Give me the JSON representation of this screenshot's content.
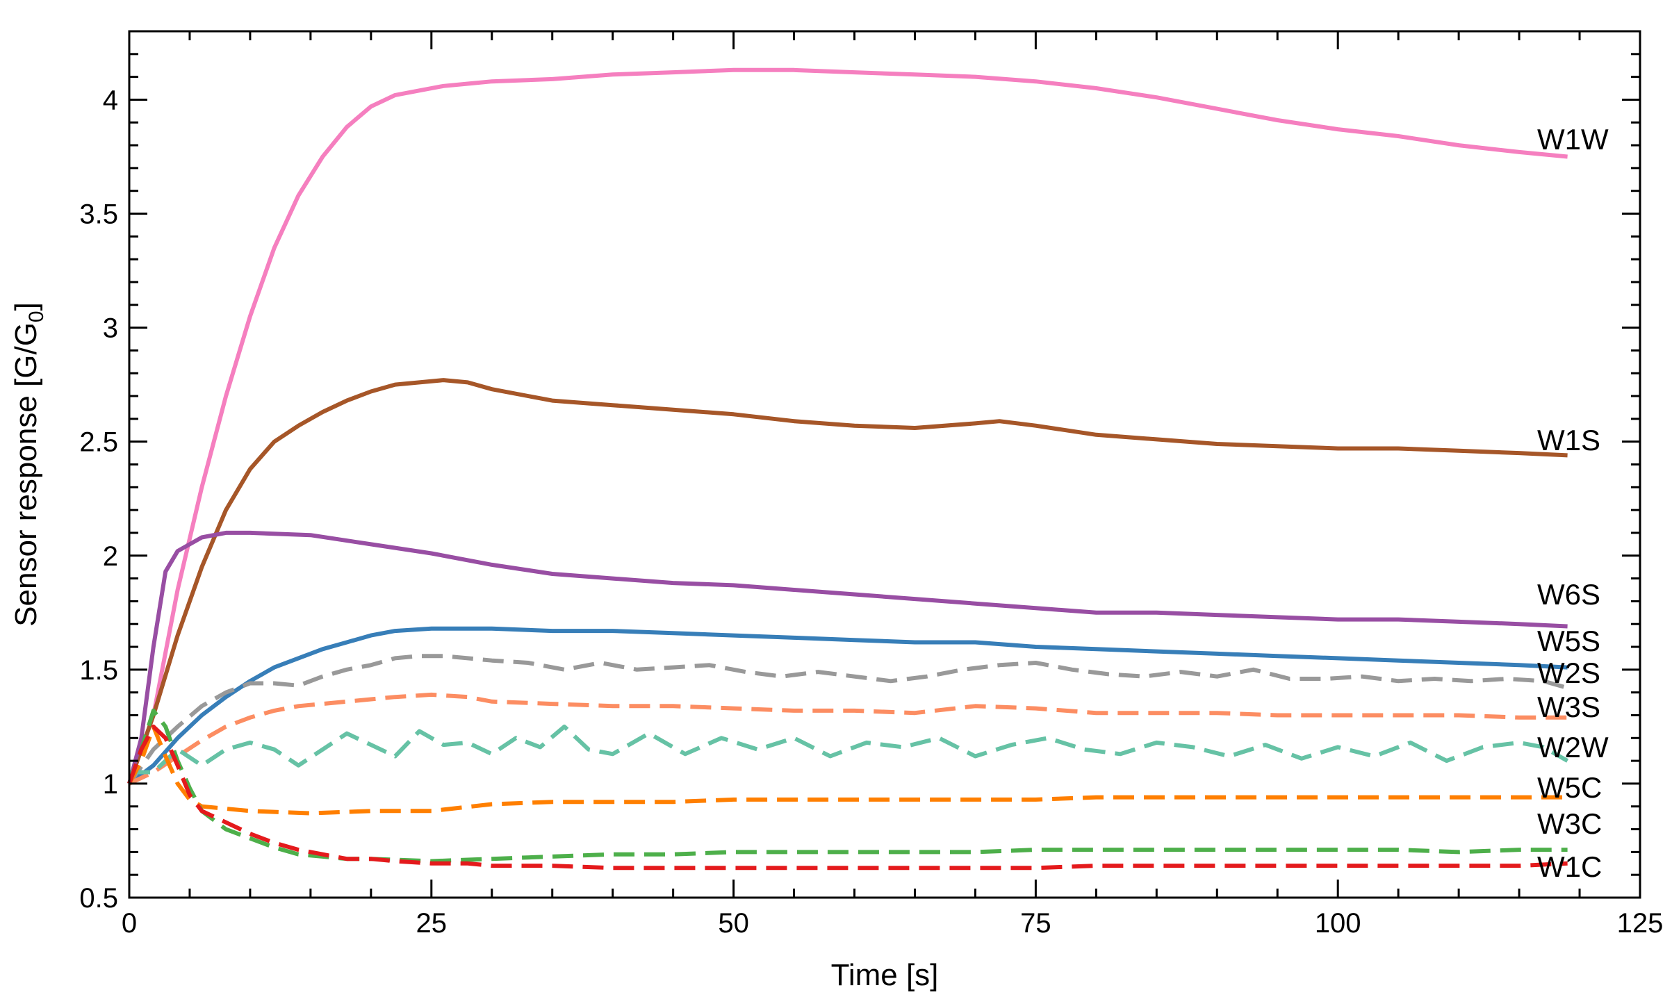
{
  "chart_data": {
    "type": "line",
    "xlabel": "Time [s]",
    "ylabel": "Sensor response [G/G",
    "ylabel_subscript": "0",
    "ylabel_suffix": "]",
    "xlim": [
      0,
      125
    ],
    "ylim": [
      0.5,
      4.3
    ],
    "x_ticks": [
      0,
      25,
      50,
      75,
      100,
      125
    ],
    "y_ticks": [
      0.5,
      1,
      1.5,
      2,
      2.5,
      3,
      3.5,
      4
    ],
    "x_tick_labels": [
      "0",
      "25",
      "50",
      "75",
      "100",
      "125"
    ],
    "y_tick_labels": [
      "0.5",
      "1",
      "1.5",
      "2",
      "2.5",
      "3",
      "3.5",
      "4"
    ],
    "grid": false,
    "legend": "inline labels at right end of each line",
    "series": [
      {
        "name": "W1W",
        "color": "#f57fbf",
        "dash": "solid",
        "x": [
          0,
          2,
          4,
          6,
          8,
          10,
          12,
          14,
          16,
          18,
          20,
          22,
          24,
          26,
          28,
          30,
          35,
          40,
          45,
          50,
          55,
          60,
          65,
          70,
          75,
          80,
          85,
          90,
          95,
          100,
          105,
          110,
          115,
          119
        ],
        "y": [
          1.0,
          1.3,
          1.85,
          2.3,
          2.7,
          3.05,
          3.35,
          3.58,
          3.75,
          3.88,
          3.97,
          4.02,
          4.04,
          4.06,
          4.07,
          4.08,
          4.09,
          4.11,
          4.12,
          4.13,
          4.13,
          4.12,
          4.11,
          4.1,
          4.08,
          4.05,
          4.01,
          3.96,
          3.91,
          3.87,
          3.84,
          3.8,
          3.77,
          3.75
        ]
      },
      {
        "name": "W1S",
        "color": "#a65628",
        "dash": "solid",
        "x": [
          0,
          2,
          4,
          6,
          8,
          10,
          12,
          14,
          16,
          18,
          20,
          22,
          24,
          26,
          28,
          30,
          35,
          40,
          45,
          50,
          55,
          60,
          65,
          70,
          72,
          75,
          80,
          85,
          90,
          95,
          100,
          105,
          110,
          115,
          119
        ],
        "y": [
          1.0,
          1.3,
          1.65,
          1.95,
          2.2,
          2.38,
          2.5,
          2.57,
          2.63,
          2.68,
          2.72,
          2.75,
          2.76,
          2.77,
          2.76,
          2.73,
          2.68,
          2.66,
          2.64,
          2.62,
          2.59,
          2.57,
          2.56,
          2.58,
          2.59,
          2.57,
          2.53,
          2.51,
          2.49,
          2.48,
          2.47,
          2.47,
          2.46,
          2.45,
          2.44
        ]
      },
      {
        "name": "W6S",
        "color": "#984ea3",
        "dash": "solid",
        "x": [
          0,
          1,
          2,
          3,
          4,
          6,
          8,
          10,
          15,
          20,
          25,
          30,
          35,
          40,
          45,
          50,
          55,
          60,
          65,
          70,
          75,
          80,
          85,
          90,
          95,
          100,
          105,
          110,
          115,
          119
        ],
        "y": [
          1.0,
          1.2,
          1.6,
          1.93,
          2.02,
          2.08,
          2.1,
          2.1,
          2.09,
          2.05,
          2.01,
          1.96,
          1.92,
          1.9,
          1.88,
          1.87,
          1.85,
          1.83,
          1.81,
          1.79,
          1.77,
          1.75,
          1.75,
          1.74,
          1.73,
          1.72,
          1.72,
          1.71,
          1.7,
          1.69
        ]
      },
      {
        "name": "W5S",
        "color": "#377eb8",
        "dash": "solid",
        "x": [
          0,
          2,
          4,
          6,
          8,
          10,
          12,
          14,
          16,
          18,
          20,
          22,
          25,
          28,
          30,
          35,
          40,
          45,
          50,
          55,
          60,
          65,
          70,
          75,
          80,
          85,
          90,
          95,
          100,
          105,
          110,
          115,
          119
        ],
        "y": [
          1.0,
          1.08,
          1.2,
          1.3,
          1.38,
          1.45,
          1.51,
          1.55,
          1.59,
          1.62,
          1.65,
          1.67,
          1.68,
          1.68,
          1.68,
          1.67,
          1.67,
          1.66,
          1.65,
          1.64,
          1.63,
          1.62,
          1.62,
          1.6,
          1.59,
          1.58,
          1.57,
          1.56,
          1.55,
          1.54,
          1.53,
          1.52,
          1.51
        ]
      },
      {
        "name": "W2S",
        "color": "#999999",
        "dash": "dashed",
        "x": [
          0,
          2,
          4,
          6,
          8,
          10,
          12,
          14,
          16,
          18,
          20,
          22,
          24,
          26,
          28,
          30,
          33,
          36,
          39,
          42,
          45,
          48,
          51,
          54,
          57,
          60,
          63,
          66,
          69,
          72,
          75,
          78,
          81,
          84,
          87,
          90,
          93,
          96,
          99,
          102,
          105,
          108,
          111,
          114,
          117,
          119
        ],
        "y": [
          1.0,
          1.15,
          1.25,
          1.34,
          1.4,
          1.44,
          1.44,
          1.43,
          1.47,
          1.5,
          1.52,
          1.55,
          1.56,
          1.56,
          1.55,
          1.54,
          1.53,
          1.5,
          1.53,
          1.5,
          1.51,
          1.52,
          1.49,
          1.47,
          1.49,
          1.47,
          1.45,
          1.47,
          1.5,
          1.52,
          1.53,
          1.5,
          1.48,
          1.47,
          1.49,
          1.47,
          1.5,
          1.46,
          1.46,
          1.47,
          1.45,
          1.46,
          1.45,
          1.46,
          1.45,
          1.42
        ]
      },
      {
        "name": "W3S",
        "color": "#fc8d62",
        "dash": "dashed",
        "x": [
          0,
          2,
          4,
          6,
          8,
          10,
          12,
          14,
          16,
          18,
          20,
          22,
          25,
          28,
          30,
          35,
          40,
          45,
          50,
          55,
          60,
          65,
          70,
          75,
          80,
          85,
          90,
          95,
          100,
          105,
          110,
          115,
          119
        ],
        "y": [
          1.0,
          1.05,
          1.12,
          1.19,
          1.25,
          1.29,
          1.32,
          1.34,
          1.35,
          1.36,
          1.37,
          1.38,
          1.39,
          1.38,
          1.36,
          1.35,
          1.34,
          1.34,
          1.33,
          1.32,
          1.32,
          1.31,
          1.34,
          1.33,
          1.31,
          1.31,
          1.31,
          1.3,
          1.3,
          1.3,
          1.3,
          1.29,
          1.29
        ]
      },
      {
        "name": "W2W",
        "color": "#66c2a5",
        "dash": "dashed",
        "x": [
          0,
          2,
          4,
          6,
          8,
          10,
          12,
          14,
          16,
          18,
          20,
          22,
          24,
          26,
          28,
          30,
          32,
          34,
          36,
          38,
          40,
          43,
          46,
          49,
          52,
          55,
          58,
          61,
          64,
          67,
          70,
          73,
          76,
          79,
          82,
          85,
          88,
          91,
          94,
          97,
          100,
          103,
          106,
          109,
          112,
          115,
          117,
          119
        ],
        "y": [
          1.05,
          1.05,
          1.15,
          1.08,
          1.15,
          1.18,
          1.15,
          1.08,
          1.15,
          1.22,
          1.17,
          1.12,
          1.23,
          1.17,
          1.18,
          1.13,
          1.2,
          1.16,
          1.25,
          1.15,
          1.13,
          1.22,
          1.13,
          1.2,
          1.15,
          1.2,
          1.12,
          1.18,
          1.16,
          1.2,
          1.12,
          1.17,
          1.2,
          1.15,
          1.13,
          1.18,
          1.16,
          1.12,
          1.17,
          1.11,
          1.16,
          1.12,
          1.18,
          1.1,
          1.16,
          1.18,
          1.16,
          1.1
        ]
      },
      {
        "name": "W5C",
        "color": "#ff7f00",
        "dash": "dashed",
        "x": [
          0,
          1,
          2,
          3,
          4,
          5,
          6,
          8,
          10,
          15,
          20,
          25,
          30,
          35,
          40,
          45,
          50,
          55,
          60,
          65,
          70,
          75,
          80,
          85,
          90,
          95,
          100,
          105,
          110,
          115,
          119
        ],
        "y": [
          1.0,
          1.1,
          1.25,
          1.12,
          1.0,
          0.93,
          0.9,
          0.89,
          0.88,
          0.87,
          0.88,
          0.88,
          0.91,
          0.92,
          0.92,
          0.92,
          0.93,
          0.93,
          0.93,
          0.93,
          0.93,
          0.93,
          0.94,
          0.94,
          0.94,
          0.94,
          0.94,
          0.94,
          0.94,
          0.94,
          0.94
        ]
      },
      {
        "name": "W3C",
        "color": "#4daf4a",
        "dash": "dashed",
        "x": [
          0,
          1,
          2,
          3,
          4,
          5,
          6,
          8,
          10,
          12,
          14,
          16,
          18,
          20,
          25,
          30,
          35,
          40,
          45,
          50,
          55,
          60,
          65,
          70,
          75,
          80,
          85,
          90,
          95,
          100,
          105,
          110,
          115,
          119
        ],
        "y": [
          1.0,
          1.15,
          1.32,
          1.25,
          1.1,
          0.98,
          0.88,
          0.8,
          0.76,
          0.72,
          0.69,
          0.68,
          0.67,
          0.67,
          0.66,
          0.67,
          0.68,
          0.69,
          0.69,
          0.7,
          0.7,
          0.7,
          0.7,
          0.7,
          0.71,
          0.71,
          0.71,
          0.71,
          0.71,
          0.71,
          0.71,
          0.7,
          0.71,
          0.71
        ]
      },
      {
        "name": "W1C",
        "color": "#e41a1c",
        "dash": "dashed",
        "x": [
          0,
          1,
          2,
          3,
          4,
          5,
          6,
          8,
          10,
          12,
          14,
          16,
          18,
          20,
          22,
          25,
          28,
          30,
          35,
          40,
          45,
          50,
          55,
          60,
          65,
          70,
          75,
          80,
          85,
          90,
          95,
          100,
          105,
          110,
          115,
          119
        ],
        "y": [
          1.0,
          1.15,
          1.25,
          1.2,
          1.08,
          0.95,
          0.88,
          0.83,
          0.78,
          0.74,
          0.71,
          0.69,
          0.67,
          0.67,
          0.66,
          0.65,
          0.65,
          0.64,
          0.64,
          0.63,
          0.63,
          0.63,
          0.63,
          0.63,
          0.63,
          0.63,
          0.63,
          0.64,
          0.64,
          0.64,
          0.64,
          0.64,
          0.64,
          0.64,
          0.64,
          0.65
        ]
      }
    ]
  }
}
